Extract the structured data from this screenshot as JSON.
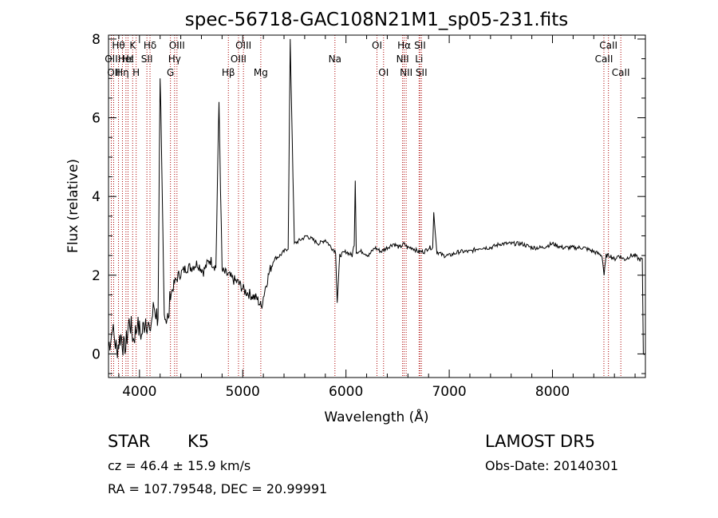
{
  "chart_data": {
    "type": "line",
    "title": "spec-56718-GAC108N21M1_sp05-231.fits",
    "xlabel": "Wavelength (Å)",
    "ylabel": "Flux (relative)",
    "xlim": [
      3700,
      8900
    ],
    "ylim": [
      -0.6,
      8.1
    ],
    "xticks": [
      4000,
      5000,
      6000,
      7000,
      8000
    ],
    "yticks": [
      0,
      2,
      4,
      6,
      8
    ],
    "grid": false,
    "series": [
      {
        "x": [
          3700,
          3740,
          3780,
          3820,
          3860,
          3900,
          3940,
          3980,
          4020,
          4060,
          4100,
          4140,
          4180,
          4200,
          4240,
          4280,
          4300,
          4340,
          4380,
          4420,
          4460,
          4500,
          4560,
          4620,
          4680,
          4740,
          4770,
          4800,
          4860,
          4900,
          4960,
          5020,
          5080,
          5140,
          5180,
          5220,
          5260,
          5300,
          5360,
          5400,
          5440,
          5460,
          5500,
          5560,
          5620,
          5680,
          5740,
          5800,
          5860,
          5900,
          5915,
          5940,
          6000,
          6060,
          6080,
          6090,
          6100,
          6160,
          6220,
          6280,
          6340,
          6400,
          6460,
          6520,
          6560,
          6600,
          6640,
          6700,
          6760,
          6800,
          6840,
          6850,
          6880,
          6940,
          7000,
          7100,
          7200,
          7300,
          7400,
          7500,
          7600,
          7700,
          7800,
          7900,
          8000,
          8100,
          8200,
          8300,
          8400,
          8480,
          8500,
          8520,
          8560,
          8600,
          8640,
          8700,
          8760,
          8800,
          8840,
          8870,
          8880,
          8900
        ],
        "y": [
          0.2,
          0.6,
          0.1,
          0.5,
          0.0,
          0.9,
          0.4,
          0.7,
          0.5,
          0.9,
          0.6,
          1.2,
          0.9,
          7.0,
          1.0,
          0.9,
          1.5,
          1.8,
          2.0,
          2.1,
          2.2,
          2.2,
          2.3,
          2.1,
          2.4,
          2.2,
          6.4,
          2.1,
          2.0,
          1.9,
          1.8,
          1.6,
          1.5,
          1.4,
          1.2,
          1.7,
          2.1,
          2.4,
          2.5,
          2.6,
          2.7,
          8.0,
          2.8,
          2.9,
          3.0,
          2.9,
          2.8,
          2.9,
          2.7,
          2.6,
          1.3,
          2.5,
          2.6,
          2.5,
          2.8,
          4.4,
          2.6,
          2.6,
          2.5,
          2.7,
          2.6,
          2.7,
          2.8,
          2.7,
          2.8,
          2.7,
          2.7,
          2.6,
          2.6,
          2.7,
          2.7,
          3.6,
          2.6,
          2.5,
          2.5,
          2.6,
          2.6,
          2.7,
          2.7,
          2.8,
          2.8,
          2.8,
          2.7,
          2.7,
          2.8,
          2.7,
          2.7,
          2.7,
          2.6,
          2.5,
          2.0,
          2.5,
          2.5,
          2.4,
          2.5,
          2.4,
          2.5,
          2.5,
          2.4,
          2.4,
          0.0,
          0.0
        ]
      }
    ],
    "lines": [
      {
        "x": 3727,
        "label": "OII",
        "row": 2
      },
      {
        "x": 3750,
        "label": "OII",
        "row": 3
      },
      {
        "x": 3797,
        "label": "Hθ",
        "row": 1
      },
      {
        "x": 3835,
        "label": "Hη",
        "row": 3
      },
      {
        "x": 3869,
        "label": "HeI",
        "row": 2
      },
      {
        "x": 3889,
        "label": "Hε",
        "row": 2
      },
      {
        "x": 3934,
        "label": "K",
        "row": 1
      },
      {
        "x": 3968,
        "label": "H",
        "row": 3
      },
      {
        "x": 4072,
        "label": "SII",
        "row": 2
      },
      {
        "x": 4102,
        "label": "Hδ",
        "row": 1
      },
      {
        "x": 4300,
        "label": "G",
        "row": 3
      },
      {
        "x": 4340,
        "label": "Hγ",
        "row": 2
      },
      {
        "x": 4363,
        "label": "OIII",
        "row": 1
      },
      {
        "x": 4861,
        "label": "Hβ",
        "row": 3
      },
      {
        "x": 4959,
        "label": "OIII",
        "row": 2
      },
      {
        "x": 5007,
        "label": "OIII",
        "row": 1
      },
      {
        "x": 5175,
        "label": "Mg",
        "row": 3
      },
      {
        "x": 5893,
        "label": "Na",
        "row": 2
      },
      {
        "x": 6300,
        "label": "OI",
        "row": 1
      },
      {
        "x": 6364,
        "label": "OI",
        "row": 3
      },
      {
        "x": 6548,
        "label": "NII",
        "row": 2
      },
      {
        "x": 6563,
        "label": "Hα",
        "row": 1
      },
      {
        "x": 6583,
        "label": "NII",
        "row": 3
      },
      {
        "x": 6708,
        "label": "Li",
        "row": 2
      },
      {
        "x": 6717,
        "label": "SII",
        "row": 1
      },
      {
        "x": 6731,
        "label": "SII",
        "row": 3
      },
      {
        "x": 8498,
        "label": "CaII",
        "row": 2
      },
      {
        "x": 8542,
        "label": "CaII",
        "row": 1
      },
      {
        "x": 8662,
        "label": "CaII",
        "row": 3
      }
    ]
  },
  "info": {
    "class": "STAR",
    "subclass": "K5",
    "survey": "LAMOST DR5",
    "redshift": "cz = 46.4 ± 15.9 km/s",
    "obsdate": "Obs-Date: 20140301",
    "coords": "RA = 107.79548, DEC =  20.99991"
  },
  "colors": {
    "spectrum": "#000000",
    "linemarker": "#aa0000"
  }
}
